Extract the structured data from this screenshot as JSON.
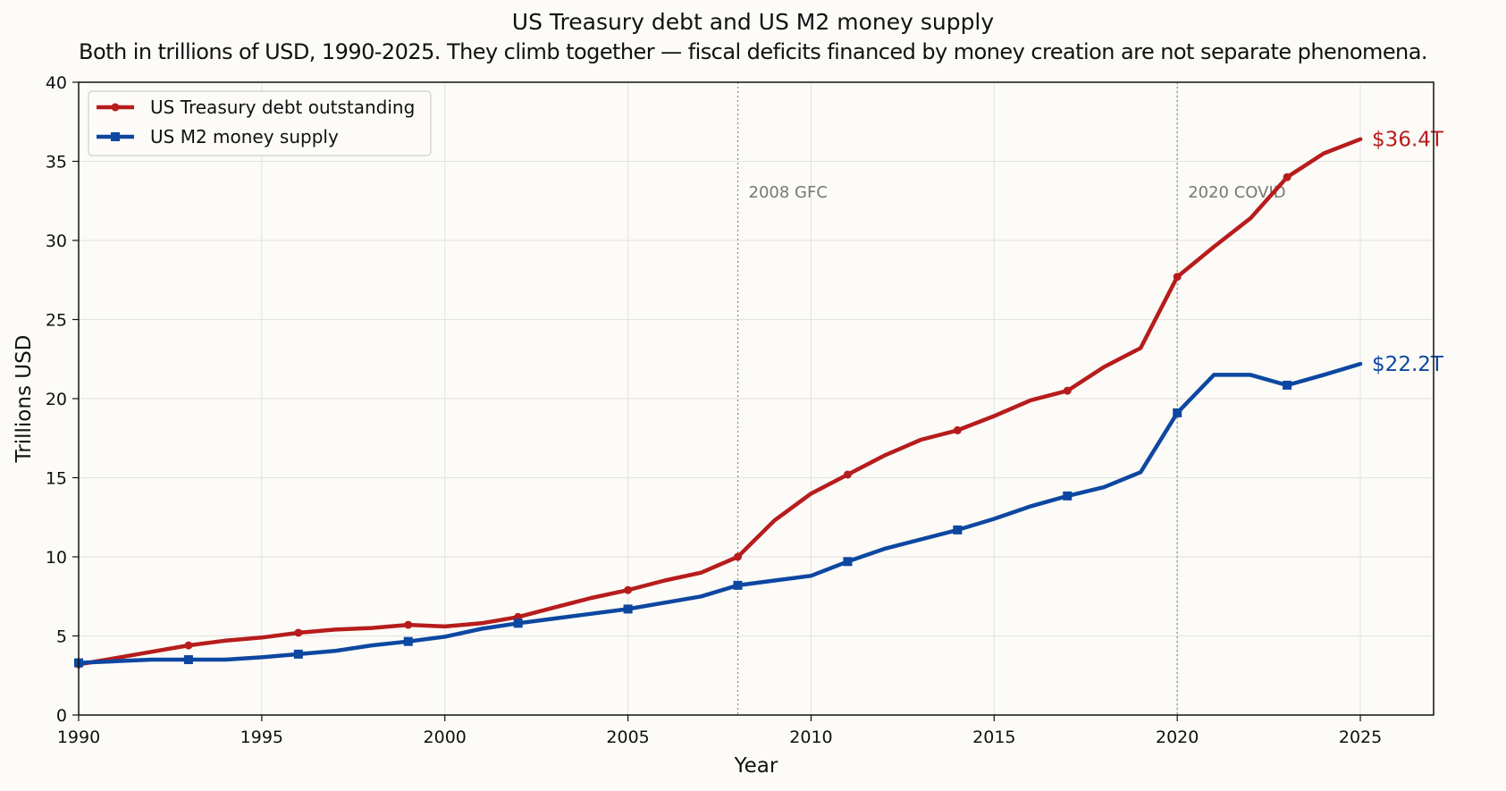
{
  "chart_data": {
    "type": "line",
    "title": "US Treasury debt and US M2 money supply",
    "subtitle": "Both in trillions of USD, 1990-2025. They climb together — fiscal deficits financed by money creation are not separate phenomena.",
    "xlabel": "Year",
    "ylabel": "Trillions USD",
    "xlim": [
      1990,
      2027
    ],
    "ylim": [
      0,
      40
    ],
    "xticks": [
      1990,
      1995,
      2000,
      2005,
      2010,
      2015,
      2020,
      2025
    ],
    "yticks": [
      0,
      5,
      10,
      15,
      20,
      25,
      30,
      35,
      40
    ],
    "grid": true,
    "legend_position": "top-left",
    "x": [
      1990,
      1991,
      1992,
      1993,
      1994,
      1995,
      1996,
      1997,
      1998,
      1999,
      2000,
      2001,
      2002,
      2003,
      2004,
      2005,
      2006,
      2007,
      2008,
      2009,
      2010,
      2011,
      2012,
      2013,
      2014,
      2015,
      2016,
      2017,
      2018,
      2019,
      2020,
      2021,
      2022,
      2023,
      2024,
      2025
    ],
    "series": [
      {
        "name": "US Treasury debt outstanding",
        "color": "#b71c1c",
        "marker": "circle",
        "marker_every": 3,
        "end_label": "$36.4T",
        "values": [
          3.2,
          3.6,
          4.0,
          4.4,
          4.7,
          4.9,
          5.2,
          5.4,
          5.5,
          5.7,
          5.6,
          5.8,
          6.2,
          6.8,
          7.4,
          7.9,
          8.5,
          9.0,
          10.0,
          12.3,
          14.0,
          15.2,
          16.4,
          17.4,
          18.0,
          18.9,
          19.9,
          20.5,
          22.0,
          23.2,
          27.7,
          29.6,
          31.4,
          34.0,
          35.5,
          36.4
        ]
      },
      {
        "name": "US M2 money supply",
        "color": "#0d47a1",
        "marker": "square",
        "marker_every": 3,
        "end_label": "$22.2T",
        "values": [
          3.3,
          3.4,
          3.5,
          3.5,
          3.5,
          3.65,
          3.85,
          4.05,
          4.4,
          4.65,
          4.95,
          5.45,
          5.8,
          6.1,
          6.4,
          6.7,
          7.1,
          7.5,
          8.2,
          8.5,
          8.8,
          9.7,
          10.5,
          11.1,
          11.7,
          12.4,
          13.2,
          13.85,
          14.4,
          15.35,
          19.1,
          21.5,
          21.5,
          20.85,
          21.5,
          22.2
        ]
      }
    ],
    "annotations": [
      {
        "x": 2008,
        "label": "2008 GFC"
      },
      {
        "x": 2020,
        "label": "2020 COVID"
      }
    ],
    "colors": {
      "background": "#fcfbf7",
      "grid": "#e2e2e2",
      "axis": "#111111",
      "vline": "#888888",
      "annotation_text": "#777777"
    }
  }
}
